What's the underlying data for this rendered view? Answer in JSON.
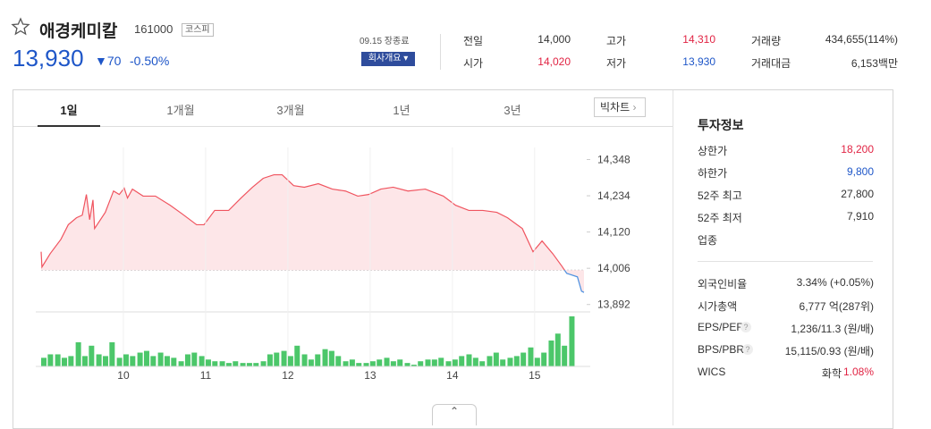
{
  "header": {
    "name": "애경케미칼",
    "code": "161000",
    "market": "코스피",
    "price": "13,930",
    "change": "70",
    "change_rate": "-0.50%",
    "status": "09.15 장종료",
    "company_button": "회사개요"
  },
  "stats": [
    {
      "label": "전일",
      "value": "14,000"
    },
    {
      "label": "고가",
      "value": "14,310"
    },
    {
      "label": "거래량",
      "value": "434,655(114%)"
    },
    {
      "label": "시가",
      "value": "14,020"
    },
    {
      "label": "저가",
      "value": "13,930"
    },
    {
      "label": "거래대금",
      "value": "6,153백만"
    }
  ],
  "tabs": [
    "1일",
    "1개월",
    "3개월",
    "1년",
    "3년"
  ],
  "big_chart_button": "빅차트",
  "info": {
    "title": "투자정보",
    "rows": [
      {
        "label": "상한가",
        "value": "18,200"
      },
      {
        "label": "하한가",
        "value": "9,800"
      },
      {
        "label": "52주 최고",
        "value": "27,800"
      },
      {
        "label": "52주 최저",
        "value": "7,910"
      },
      {
        "label": "업종"
      },
      {
        "label": "외국인비율",
        "value": "3.34% (+0.05%)"
      },
      {
        "label": "시가총액",
        "value": "6,777 억(287위)"
      },
      {
        "label": "EPS/PER",
        "value": "1,236/11.3 (원/배)"
      },
      {
        "label": "BPS/PBR",
        "value": "15,115/0.93 (원/배)"
      },
      {
        "label": "WICS",
        "value": "화학",
        "extra": "1.08%"
      }
    ]
  },
  "chart_data": [
    {
      "type": "line",
      "x": [
        9.0,
        9.01,
        9.11,
        9.24,
        9.33,
        9.43,
        9.5,
        9.55,
        9.59,
        9.63,
        9.65,
        9.78,
        9.88,
        9.95,
        10.01,
        10.05,
        10.11,
        10.24,
        10.39,
        10.57,
        10.72,
        10.89,
        10.98,
        11.11,
        11.28,
        11.43,
        11.57,
        11.7,
        11.83,
        11.93,
        12.07,
        12.2,
        12.37,
        12.54,
        12.7,
        12.85,
        12.98,
        13.13,
        13.28,
        13.46,
        13.67,
        13.89,
        14.04,
        14.2,
        14.37,
        14.54,
        14.67,
        14.85,
        14.98,
        15.09,
        15.22,
        15.33,
        15.39,
        15.52,
        15.57,
        15.6
      ],
      "values": [
        14058,
        14010,
        14052,
        14097,
        14143,
        14165,
        14173,
        14238,
        14159,
        14221,
        14131,
        14182,
        14249,
        14238,
        14258,
        14227,
        14255,
        14233,
        14233,
        14204,
        14176,
        14143,
        14143,
        14188,
        14188,
        14227,
        14261,
        14289,
        14300,
        14300,
        14266,
        14261,
        14272,
        14255,
        14249,
        14233,
        14238,
        14255,
        14261,
        14249,
        14255,
        14233,
        14204,
        14188,
        14188,
        14182,
        14165,
        14131,
        14058,
        14092,
        14052,
        14013,
        13990,
        13979,
        13934,
        13930
      ],
      "baseline": 14000,
      "color": "#f0545f",
      "color_below": "#4a8fe0",
      "fill": "#fde6e8",
      "xlim": [
        9,
        15.6
      ],
      "ylim": [
        13880,
        14400
      ],
      "yticks": [
        {
          "value": 14348,
          "label": "14,348"
        },
        {
          "value": 14234,
          "label": "14,234"
        },
        {
          "value": 14120,
          "label": "14,120"
        },
        {
          "value": 14006,
          "label": "14,006"
        },
        {
          "value": 13892,
          "label": "13,892"
        }
      ]
    },
    {
      "type": "bar",
      "x": [
        9.0,
        9.08,
        9.17,
        9.25,
        9.33,
        9.42,
        9.5,
        9.58,
        9.67,
        9.75,
        9.83,
        9.92,
        10.0,
        10.08,
        10.17,
        10.25,
        10.33,
        10.42,
        10.5,
        10.58,
        10.67,
        10.75,
        10.83,
        10.92,
        11.0,
        11.08,
        11.17,
        11.25,
        11.33,
        11.42,
        11.5,
        11.58,
        11.67,
        11.75,
        11.83,
        11.92,
        12.0,
        12.08,
        12.17,
        12.25,
        12.33,
        12.42,
        12.5,
        12.58,
        12.67,
        12.75,
        12.83,
        12.92,
        13.0,
        13.08,
        13.17,
        13.25,
        13.33,
        13.42,
        13.5,
        13.58,
        13.67,
        13.75,
        13.83,
        13.92,
        14.0,
        14.08,
        14.17,
        14.25,
        14.33,
        14.42,
        14.5,
        14.58,
        14.67,
        14.75,
        14.83,
        14.92,
        15.0,
        15.08,
        15.17,
        15.25,
        15.33,
        15.42
      ],
      "values": [
        10,
        14,
        14,
        10,
        12,
        28,
        12,
        24,
        14,
        12,
        28,
        10,
        14,
        12,
        16,
        18,
        12,
        16,
        12,
        10,
        6,
        14,
        16,
        12,
        8,
        6,
        6,
        4,
        6,
        4,
        4,
        4,
        6,
        14,
        16,
        18,
        12,
        24,
        14,
        8,
        14,
        20,
        18,
        12,
        6,
        8,
        4,
        4,
        6,
        8,
        10,
        6,
        8,
        4,
        2,
        6,
        8,
        8,
        10,
        6,
        8,
        12,
        14,
        10,
        6,
        12,
        16,
        8,
        10,
        12,
        16,
        22,
        10,
        16,
        30,
        38,
        24,
        58
      ],
      "color": "#4cc76a",
      "xlim": [
        9,
        15.6
      ],
      "ylim": [
        0,
        60
      ],
      "xticks": [
        10,
        11,
        12,
        13,
        14,
        15
      ]
    }
  ]
}
